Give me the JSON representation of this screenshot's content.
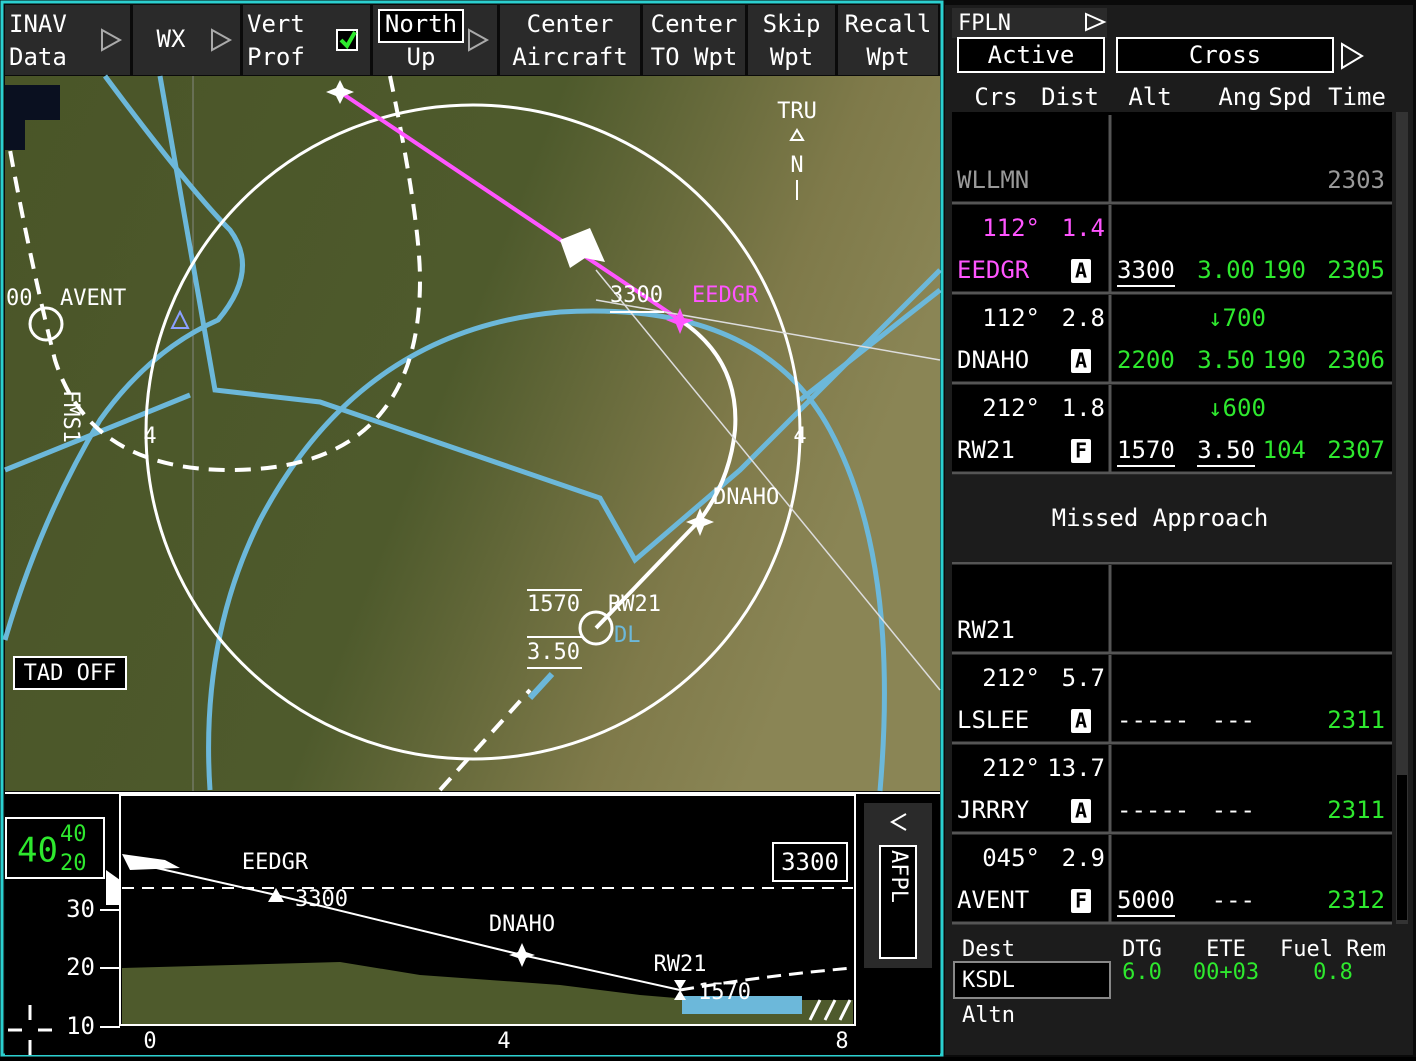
{
  "toolbar": [
    {
      "line1": "INAV",
      "line2": "Data"
    },
    {
      "line1": "WX"
    },
    {
      "line1": "Vert",
      "line2": "Prof"
    },
    {
      "line1": "North",
      "line2": "Up"
    },
    {
      "line1": "Center",
      "line2": "Aircraft"
    },
    {
      "line1": "Center",
      "line2": "TO Wpt"
    },
    {
      "line1": "Skip",
      "line2": "Wpt"
    },
    {
      "line1": "Recall",
      "line2": "Wpt"
    }
  ],
  "map": {
    "north_station": "TRU",
    "north_letter": "N",
    "fms_label": "FMS1",
    "tad": "TAD OFF",
    "range_labels": [
      "4",
      "4"
    ],
    "partial_labels": [
      "00",
      "DL"
    ],
    "waypoints": [
      {
        "name": "AVENT"
      },
      {
        "name": "EEDGR",
        "alt": "3300"
      },
      {
        "name": "DNAHO"
      },
      {
        "name": "RW21",
        "alt": "1570",
        "angle": "3.50"
      }
    ]
  },
  "profile": {
    "alt_readout": {
      "main": "40",
      "upper": "40",
      "lower": "20"
    },
    "scale": [
      "30",
      "20",
      "10"
    ],
    "distance_ticks": [
      "0",
      "4",
      "8"
    ],
    "preselect": "3300",
    "side_label": "AFPL",
    "waypoints": [
      {
        "name": "EEDGR",
        "alt": "3300"
      },
      {
        "name": "DNAHO"
      },
      {
        "name": "RW21",
        "alt": "1570"
      }
    ]
  },
  "fpln": {
    "title": "FPLN",
    "mode": "Active",
    "view": "Cross",
    "columns": [
      "Crs",
      "Dist",
      "Alt",
      "Ang",
      "Spd",
      "Time"
    ],
    "rows": [
      {
        "ident": "WLLMN",
        "time": "2303"
      },
      {
        "crs": "112°",
        "dist": "1.4",
        "ident": "EEDGR",
        "constraint": "A",
        "alt": "3300",
        "ang": "3.00",
        "spd": "190",
        "time": "2305"
      },
      {
        "crs": "112°",
        "dist": "2.8",
        "ident": "DNAHO",
        "constraint": "A",
        "vs": "↓700",
        "alt": "2200",
        "ang": "3.50",
        "spd": "190",
        "time": "2306"
      },
      {
        "crs": "212°",
        "dist": "1.8",
        "ident": "RW21",
        "constraint": "F",
        "vs": "↓600",
        "alt": "1570",
        "ang": "3.50",
        "spd": "104",
        "time": "2307"
      },
      {
        "section": "Missed Approach"
      },
      {
        "ident": "RW21"
      },
      {
        "crs": "212°",
        "dist": "5.7",
        "ident": "LSLEE",
        "constraint": "A",
        "alt": "-----",
        "ang": "---",
        "time": "2311"
      },
      {
        "crs": "212°",
        "dist": "13.7",
        "ident": "JRRRY",
        "constraint": "A",
        "alt": "-----",
        "ang": "---",
        "time": "2311"
      },
      {
        "crs": "045°",
        "dist": "2.9",
        "ident": "AVENT",
        "constraint": "F",
        "alt": "5000",
        "ang": "---",
        "time": "2312"
      }
    ],
    "footer": {
      "dest_label": "Dest",
      "dest": "KSDL",
      "altn_label": "Altn",
      "dtg_label": "DTG",
      "dtg": "6.0",
      "ete_label": "ETE",
      "ete": "00+03",
      "fuel_label": "Fuel Rem",
      "fuel": "0.8"
    }
  }
}
